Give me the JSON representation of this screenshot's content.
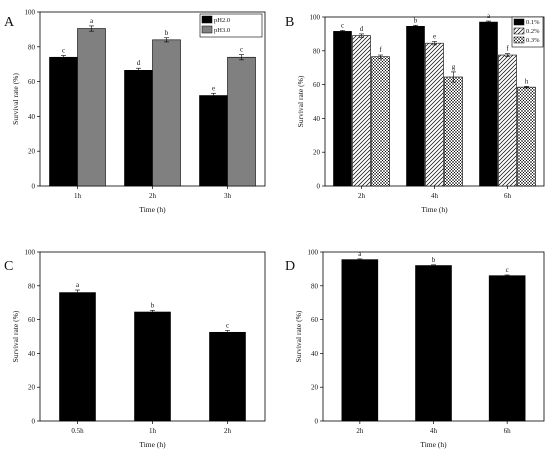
{
  "chart_data": [
    {
      "panel": "A",
      "type": "bar",
      "categories": [
        "1h",
        "2h",
        "3h"
      ],
      "series": [
        {
          "name": "pH2.0",
          "color": "#000000",
          "pattern": "solid",
          "values": [
            74,
            66.5,
            52
          ],
          "errors": [
            1.0,
            1.2,
            1.3
          ],
          "letters": [
            "c",
            "d",
            "e"
          ]
        },
        {
          "name": "pH3.0",
          "color": "#808080",
          "pattern": "solid",
          "values": [
            90.5,
            84,
            74
          ],
          "errors": [
            1.5,
            1.2,
            1.5
          ],
          "letters": [
            "a",
            "b",
            "c"
          ]
        }
      ],
      "xlabel": "Time (h)",
      "ylabel": "Survival rate (%)",
      "ylim": [
        0,
        100
      ],
      "yticks": [
        0,
        20,
        40,
        60,
        80,
        100
      ],
      "legend": "top-right"
    },
    {
      "panel": "B",
      "type": "bar",
      "categories": [
        "2h",
        "4h",
        "6h"
      ],
      "series": [
        {
          "name": "0.1%",
          "color": "#000000",
          "pattern": "solid",
          "values": [
            91.5,
            94.5,
            97
          ],
          "errors": [
            0.6,
            0.6,
            0.6
          ],
          "letters": [
            "c",
            "b",
            "a"
          ]
        },
        {
          "name": "0.2%",
          "color": "#000000",
          "pattern": "hatch",
          "values": [
            89,
            84.5,
            77.5
          ],
          "errors": [
            1.0,
            1.0,
            0.8
          ],
          "letters": [
            "d",
            "e",
            "f"
          ]
        },
        {
          "name": "0.3%",
          "color": "#000000",
          "pattern": "cross",
          "values": [
            76.5,
            64.5,
            58.5
          ],
          "errors": [
            1.0,
            3.0,
            0.5
          ],
          "letters": [
            "f",
            "g",
            "h"
          ]
        }
      ],
      "xlabel": "Time (h)",
      "ylabel": "Survival rate (%)",
      "ylim": [
        0,
        100
      ],
      "yticks": [
        0,
        20,
        40,
        60,
        80,
        100
      ],
      "legend": "top-right"
    },
    {
      "panel": "C",
      "type": "bar",
      "categories": [
        "0.5h",
        "1h",
        "2h"
      ],
      "series": [
        {
          "name": "",
          "color": "#000000",
          "pattern": "solid",
          "values": [
            76,
            64.5,
            52.5
          ],
          "errors": [
            1.5,
            1.0,
            1.0
          ],
          "letters": [
            "a",
            "b",
            "c"
          ]
        }
      ],
      "xlabel": "Time (h)",
      "ylabel": "Survival rate (%)",
      "ylim": [
        0,
        100
      ],
      "yticks": [
        0,
        20,
        40,
        60,
        80,
        100
      ]
    },
    {
      "panel": "D",
      "type": "bar",
      "categories": [
        "2h",
        "4h",
        "6h"
      ],
      "series": [
        {
          "name": "",
          "color": "#000000",
          "pattern": "solid",
          "values": [
            95.5,
            92,
            86
          ],
          "errors": [
            0.4,
            0.4,
            0.4
          ],
          "letters": [
            "a",
            "b",
            "c"
          ]
        }
      ],
      "xlabel": "Time (h)",
      "ylabel": "Survival rate (%)",
      "ylim": [
        0,
        100
      ],
      "yticks": [
        0,
        20,
        40,
        60,
        80,
        100
      ]
    }
  ]
}
